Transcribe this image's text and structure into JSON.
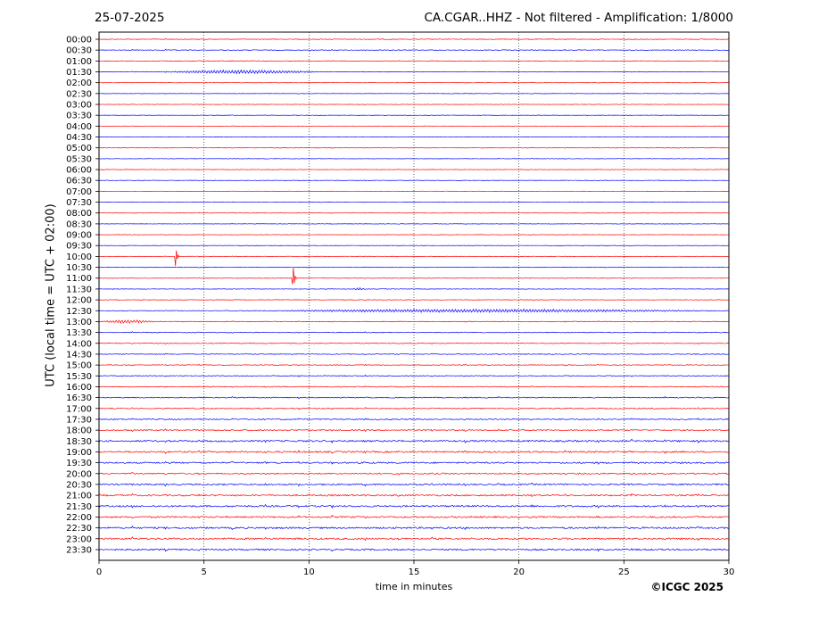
{
  "header": {
    "date": "25-07-2025",
    "title": "CA.CGAR..HHZ - Not filtered - Amplification: 1/8000"
  },
  "footer": {
    "copyright": "©ICGC 2025"
  },
  "chart_data": {
    "type": "line",
    "title": "CA.CGAR..HHZ - Not filtered - Amplification: 1/8000",
    "xlabel": "time in minutes",
    "ylabel": "UTC (local time = UTC + 02:00)",
    "xlim": [
      0,
      30
    ],
    "xticks": [
      0,
      5,
      10,
      15,
      20,
      25,
      30
    ],
    "vertical_gridlines": [
      5,
      10,
      15,
      20,
      25
    ],
    "grid_style": "dotted",
    "trace_colors": [
      "#ff0000",
      "#0000ff"
    ],
    "rows": [
      "00:00",
      "00:30",
      "01:00",
      "01:30",
      "02:00",
      "02:30",
      "03:00",
      "03:30",
      "04:00",
      "04:30",
      "05:00",
      "05:30",
      "06:00",
      "06:30",
      "07:00",
      "07:30",
      "08:00",
      "08:30",
      "09:00",
      "09:30",
      "10:00",
      "10:30",
      "11:00",
      "11:30",
      "12:00",
      "12:30",
      "13:00",
      "13:30",
      "14:00",
      "14:30",
      "15:00",
      "15:30",
      "16:00",
      "16:30",
      "17:00",
      "17:30",
      "18:00",
      "18:30",
      "19:00",
      "19:30",
      "20:00",
      "20:30",
      "21:00",
      "21:30",
      "22:00",
      "22:30",
      "23:00",
      "23:30"
    ],
    "noise_level": [
      0.35,
      0.35,
      0.3,
      0.25,
      0.2,
      0.2,
      0.2,
      0.2,
      0.2,
      0.2,
      0.2,
      0.2,
      0.2,
      0.2,
      0.2,
      0.2,
      0.2,
      0.2,
      0.2,
      0.2,
      0.25,
      0.25,
      0.25,
      0.25,
      0.25,
      0.3,
      0.35,
      0.4,
      0.4,
      0.4,
      0.4,
      0.45,
      0.45,
      0.5,
      0.55,
      0.6,
      0.7,
      0.9,
      0.85,
      0.8,
      0.7,
      0.8,
      0.85,
      0.9,
      0.85,
      0.9,
      0.9,
      0.85
    ],
    "events": [
      {
        "row": "01:30",
        "start_min": 2.8,
        "end_min": 10.7,
        "peak_min": 8.5,
        "amplitude": 1.8,
        "type": "wave-train"
      },
      {
        "row": "10:00",
        "start_min": 3.6,
        "end_min": 3.9,
        "peak_min": 3.65,
        "amplitude": 12,
        "type": "spike"
      },
      {
        "row": "11:00",
        "start_min": 9.2,
        "end_min": 9.5,
        "peak_min": 9.25,
        "amplitude": 13,
        "type": "spike"
      },
      {
        "row": "11:30",
        "start_min": 12.0,
        "end_min": 12.8,
        "peak_min": 12.3,
        "amplitude": 1.2,
        "type": "burst"
      },
      {
        "row": "12:30",
        "start_min": 6.5,
        "end_min": 30,
        "peak_min": 18,
        "amplitude": 1.6,
        "type": "wave-train"
      },
      {
        "row": "13:00",
        "start_min": 0,
        "end_min": 2.8,
        "peak_min": 1.0,
        "amplitude": 1.6,
        "type": "wave-train"
      }
    ]
  }
}
